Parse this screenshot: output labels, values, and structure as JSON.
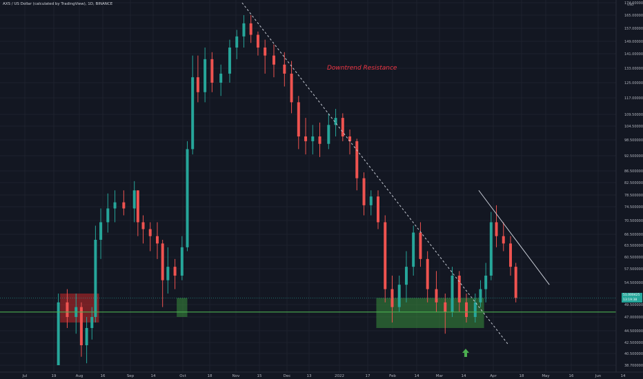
{
  "title": "AXS / US Dollar (calculated by TradingView), 1D, BINANCE",
  "currency": "USD",
  "annotation": "Downtrend Resistance",
  "last_price": {
    "line1": "51.000425",
    "line2": "13:19:38",
    "color": "#26a69a"
  },
  "colors": {
    "background": "#131722",
    "up": "#26a69a",
    "down": "#ef5350",
    "support_line": "#4caf50",
    "red_zone": "#c62828",
    "green_zone": "#388e3c",
    "annotation": "#f23645"
  },
  "icons": [
    "up-arrow-icon"
  ],
  "chart_data": {
    "type": "candlestick",
    "symbol": "AXSUSD",
    "timeframe": "1D",
    "exchange": "BINANCE",
    "ylim": [
      36.7,
      174
    ],
    "y_ticks": [
      "174.000000",
      "165.000000",
      "157.000000",
      "149.000000",
      "141.000000",
      "133.000000",
      "125.000000",
      "117.000000",
      "109.500000",
      "104.500000",
      "98.500000",
      "92.500000",
      "86.500000",
      "82.500000",
      "78.500000",
      "74.500000",
      "70.500000",
      "66.500000",
      "63.500000",
      "60.500000",
      "57.500000",
      "54.500000",
      "49.500000",
      "47.000000",
      "44.500000",
      "42.500000",
      "40.500000",
      "38.700000"
    ],
    "x_ticks": [
      "Jul",
      "19",
      "Aug",
      "16",
      "Sep",
      "14",
      "Oct",
      "18",
      "Nov",
      "15",
      "Dec",
      "13",
      "2022",
      "17",
      "Feb",
      "14",
      "Mar",
      "14",
      "Apr",
      "18",
      "May",
      "16",
      "Jun",
      "14"
    ],
    "support_level": 48,
    "zones": [
      {
        "color": "red",
        "from": "2021-07-21",
        "to": "2021-08-12",
        "low": 46,
        "high": 52
      },
      {
        "color": "green",
        "from": "2021-09-25",
        "to": "2021-10-01",
        "low": 47,
        "high": 51
      },
      {
        "color": "green",
        "from": "2022-01-16",
        "to": "2022-03-18",
        "low": 45,
        "high": 51
      }
    ],
    "trendlines": [
      {
        "name": "Downtrend Resistance",
        "style": "dashed",
        "from": [
          "2021-11-01",
          174
        ],
        "to": [
          "2022-04-01",
          42
        ]
      },
      {
        "style": "solid",
        "from": [
          "2022-03-15",
          80
        ],
        "to": [
          "2022-04-24",
          54
        ]
      }
    ],
    "ohlc": [
      [
        "2021-07-20",
        38,
        52,
        36,
        50
      ],
      [
        "2021-07-25",
        50,
        53,
        45,
        47
      ],
      [
        "2021-07-30",
        47,
        52,
        44,
        49
      ],
      [
        "2021-08-02",
        49,
        50,
        40,
        42
      ],
      [
        "2021-08-05",
        42,
        47,
        39,
        45
      ],
      [
        "2021-08-08",
        45,
        49,
        43,
        47
      ],
      [
        "2021-08-10",
        47,
        69,
        46,
        65
      ],
      [
        "2021-08-13",
        65,
        74,
        60,
        70
      ],
      [
        "2021-08-17",
        70,
        79,
        67,
        74
      ],
      [
        "2021-08-21",
        74,
        80,
        70,
        76
      ],
      [
        "2021-08-26",
        76,
        80,
        72,
        74
      ],
      [
        "2021-09-01",
        74,
        83,
        70,
        80
      ],
      [
        "2021-09-03",
        80,
        80,
        66,
        70
      ],
      [
        "2021-09-06",
        70,
        72,
        64,
        68
      ],
      [
        "2021-09-10",
        68,
        70,
        62,
        66
      ],
      [
        "2021-09-14",
        66,
        70,
        60,
        64
      ],
      [
        "2021-09-17",
        64,
        65,
        49,
        55
      ],
      [
        "2021-09-20",
        55,
        63,
        52,
        58
      ],
      [
        "2021-09-24",
        58,
        60,
        53,
        56
      ],
      [
        "2021-09-28",
        56,
        66,
        55,
        63
      ],
      [
        "2021-10-01",
        63,
        98,
        62,
        95
      ],
      [
        "2021-10-04",
        95,
        140,
        93,
        128
      ],
      [
        "2021-10-07",
        128,
        140,
        115,
        120
      ],
      [
        "2021-10-11",
        120,
        145,
        115,
        138
      ],
      [
        "2021-10-15",
        138,
        142,
        120,
        125
      ],
      [
        "2021-10-20",
        125,
        135,
        118,
        130
      ],
      [
        "2021-10-25",
        130,
        150,
        125,
        145
      ],
      [
        "2021-10-29",
        145,
        156,
        138,
        152
      ],
      [
        "2021-11-02",
        152,
        165,
        145,
        160
      ],
      [
        "2021-11-06",
        160,
        165,
        148,
        153
      ],
      [
        "2021-11-10",
        153,
        155,
        140,
        145
      ],
      [
        "2021-11-14",
        145,
        150,
        130,
        140
      ],
      [
        "2021-11-19",
        140,
        147,
        128,
        135
      ],
      [
        "2021-11-25",
        135,
        142,
        123,
        130
      ],
      [
        "2021-11-29",
        130,
        137,
        110,
        115
      ],
      [
        "2021-12-03",
        115,
        118,
        95,
        100
      ],
      [
        "2021-12-07",
        100,
        108,
        93,
        98
      ],
      [
        "2021-12-11",
        98,
        105,
        93,
        100
      ],
      [
        "2021-12-15",
        100,
        106,
        92,
        97
      ],
      [
        "2021-12-20",
        97,
        110,
        95,
        105
      ],
      [
        "2021-12-24",
        105,
        112,
        100,
        108
      ],
      [
        "2021-12-28",
        108,
        110,
        98,
        100
      ],
      [
        "2022-01-01",
        100,
        103,
        93,
        98
      ],
      [
        "2022-01-05",
        98,
        99,
        80,
        84
      ],
      [
        "2022-01-09",
        84,
        86,
        72,
        75
      ],
      [
        "2022-01-13",
        75,
        80,
        72,
        78
      ],
      [
        "2022-01-17",
        78,
        80,
        68,
        70
      ],
      [
        "2022-01-21",
        70,
        72,
        50,
        53
      ],
      [
        "2022-01-25",
        53,
        56,
        46,
        49
      ],
      [
        "2022-01-29",
        49,
        56,
        48,
        54
      ],
      [
        "2022-02-02",
        54,
        62,
        50,
        58
      ],
      [
        "2022-02-06",
        58,
        69,
        56,
        67
      ],
      [
        "2022-02-10",
        67,
        70,
        58,
        60
      ],
      [
        "2022-02-14",
        60,
        62,
        50,
        53
      ],
      [
        "2022-02-19",
        53,
        57,
        48,
        50
      ],
      [
        "2022-02-24",
        50,
        52,
        44,
        48
      ],
      [
        "2022-02-28",
        48,
        58,
        47,
        56
      ],
      [
        "2022-03-04",
        56,
        57,
        48,
        50
      ],
      [
        "2022-03-08",
        50,
        52,
        46,
        47
      ],
      [
        "2022-03-13",
        47,
        52,
        46,
        50
      ],
      [
        "2022-03-16",
        50,
        55,
        49,
        53
      ],
      [
        "2022-03-19",
        53,
        59,
        50,
        56
      ],
      [
        "2022-03-22",
        56,
        73,
        55,
        70
      ],
      [
        "2022-03-25",
        70,
        75,
        63,
        66
      ],
      [
        "2022-03-29",
        66,
        70,
        62,
        64
      ],
      [
        "2022-04-02",
        64,
        66,
        56,
        58
      ],
      [
        "2022-04-05",
        58,
        59,
        50,
        51
      ]
    ]
  }
}
